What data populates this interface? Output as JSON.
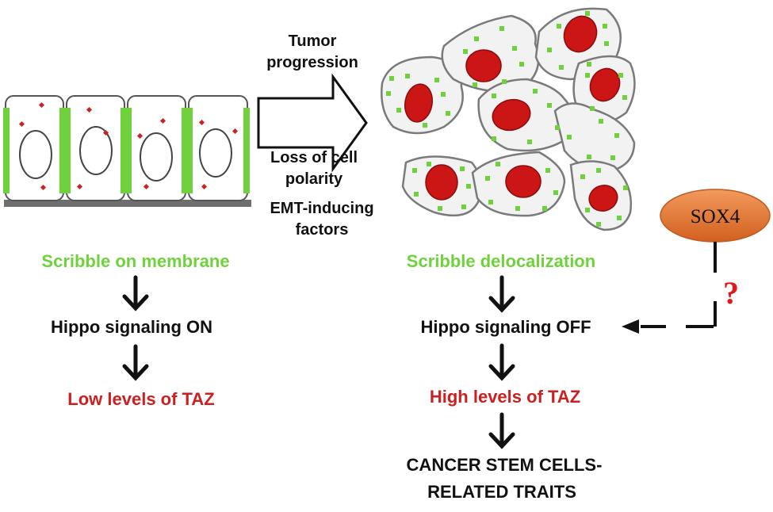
{
  "colors": {
    "membrane_green": "#6fd23c",
    "nucleus_red": "#cc1515",
    "label_green": "#6fd23c",
    "label_red": "#cc1f1f",
    "sox4_orange": "#e0732f",
    "question_red": "#e01a1a"
  },
  "arrow": {
    "top_line1": "Tumor",
    "top_line2": "progression",
    "bottom_line1": "Loss of cell",
    "bottom_line2": "polarity",
    "bottom_line3": "EMT-inducing",
    "bottom_line4": "factors"
  },
  "left_pathway": {
    "scribble": "Scribble on membrane",
    "hippo": "Hippo signaling ON",
    "taz": "Low levels of TAZ"
  },
  "right_pathway": {
    "scribble": "Scribble delocalization",
    "hippo": "Hippo signaling OFF",
    "taz": "High levels of TAZ",
    "outcome_line1": "CANCER STEM CELLS-",
    "outcome_line2": "RELATED TRAITS"
  },
  "regulator": {
    "name": "SOX4",
    "uncertainty": "?"
  }
}
